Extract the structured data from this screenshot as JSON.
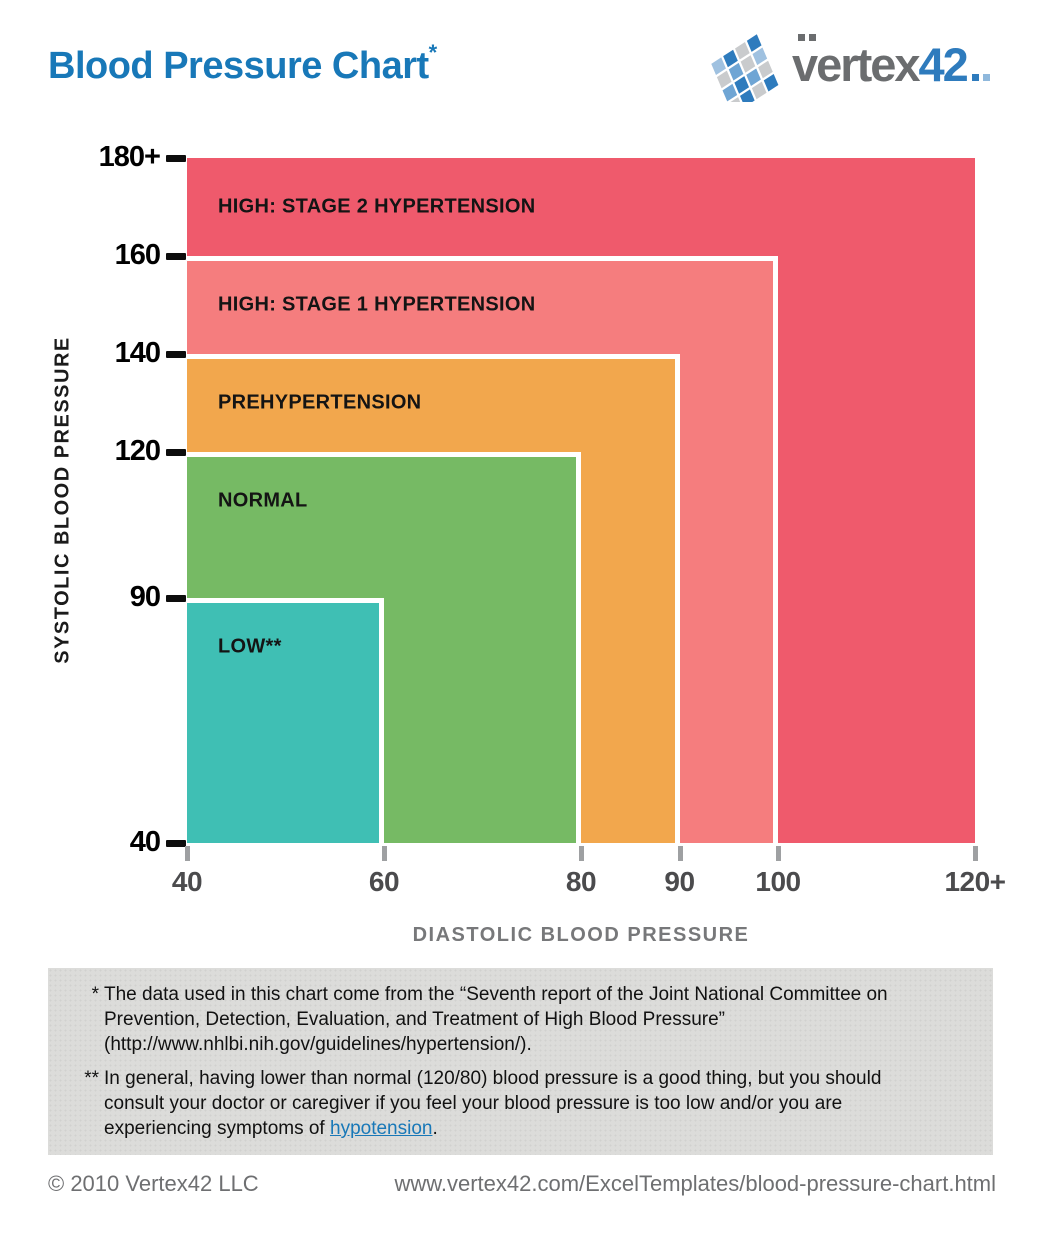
{
  "page": {
    "title": "Blood Pressure Chart",
    "title_mark": "*"
  },
  "logo": {
    "text_gray": "vertex",
    "text_blue": "42"
  },
  "brand_colors": {
    "blue": "#2e7bbd",
    "gray": "#6b6d6f",
    "title_blue": "#1878b8"
  },
  "chart_data": {
    "type": "area",
    "title": "Blood Pressure Chart",
    "xlabel": "DIASTOLIC BLOOD PRESSURE",
    "ylabel": "SYSTOLIC BLOOD PRESSURE",
    "xlim": [
      40,
      120
    ],
    "ylim": [
      40,
      180
    ],
    "grid": false,
    "legend": "labels drawn inside regions",
    "x_ticks": [
      {
        "value": 40,
        "label": "40"
      },
      {
        "value": 60,
        "label": "60"
      },
      {
        "value": 80,
        "label": "80"
      },
      {
        "value": 90,
        "label": "90"
      },
      {
        "value": 100,
        "label": "100"
      },
      {
        "value": 120,
        "label": "120+"
      }
    ],
    "y_ticks": [
      {
        "value": 40,
        "label": "40"
      },
      {
        "value": 90,
        "label": "90"
      },
      {
        "value": 120,
        "label": "120"
      },
      {
        "value": 140,
        "label": "140"
      },
      {
        "value": 160,
        "label": "160"
      },
      {
        "value": 180,
        "label": "180+"
      }
    ],
    "regions": [
      {
        "label": "HIGH: STAGE 2 HYPERTENSION",
        "diastolic_max": 120,
        "systolic_max": 180,
        "color": "#ef5a6c",
        "texture": false
      },
      {
        "label": "HIGH: STAGE 1 HYPERTENSION",
        "diastolic_max": 100,
        "systolic_max": 160,
        "color": "#f57d7e",
        "texture": false
      },
      {
        "label": "PREHYPERTENSION",
        "diastolic_max": 90,
        "systolic_max": 140,
        "color": "#f2a74d",
        "texture": false
      },
      {
        "label": "NORMAL",
        "diastolic_max": 80,
        "systolic_max": 120,
        "color": "#76ba64",
        "texture": false
      },
      {
        "label": "LOW**",
        "diastolic_max": 60,
        "systolic_max": 90,
        "color": "#3fbfb4",
        "texture": true
      }
    ]
  },
  "notes": {
    "note1": {
      "marker": "*",
      "lines": [
        "The data used in this chart come from the “Seventh report of the Joint National Committee on",
        "Prevention, Detection, Evaluation, and Treatment of High Blood Pressure”",
        "(http://www.nhlbi.nih.gov/guidelines/hypertension/)."
      ]
    },
    "note2": {
      "marker": "**",
      "lines": [
        "In general, having lower than normal (120/80) blood pressure is a good thing, but you should",
        "consult your doctor or caregiver if you feel your blood pressure is too low and/or you are"
      ],
      "line3_prefix": "experiencing symptoms of ",
      "link_text": "hypotension",
      "line3_suffix": "."
    }
  },
  "footer": {
    "copyright": "© 2010 Vertex42 LLC",
    "url": "www.vertex42.com/ExcelTemplates/blood-pressure-chart.html"
  }
}
